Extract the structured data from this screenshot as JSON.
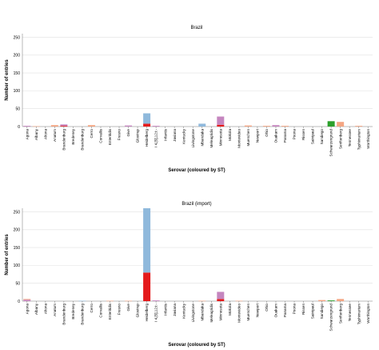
{
  "chart_data": [
    {
      "type": "bar",
      "stacked": true,
      "title": "Brazil",
      "xlabel": "Serovar (coloured by ST)",
      "ylabel": "Number of entries",
      "ylim": [
        0,
        260
      ],
      "yticks": [
        0,
        50,
        100,
        150,
        200,
        250
      ],
      "grid": true,
      "categories": [
        "Agona",
        "Albany",
        "Altona",
        "Anatum",
        "Brandenburg",
        "Bredeney",
        "Brandenburg",
        "Cerro",
        "Corvallis",
        "Enteritidis",
        "Fresno",
        "Give",
        "Glostrup",
        "Heidelberg",
        "I 4,[5],12:i:-",
        "Infantis",
        "Javiana",
        "Kentucky",
        "Livingstone",
        "Mbandaka",
        "Meleagridis",
        "Minnesota",
        "Mokola",
        "Montevideo",
        "Muenchen",
        "Newport",
        "Ohio",
        "Ouakam",
        "Panama",
        "Poona",
        "Rissen",
        "Saintpaul",
        "Sandiego",
        "Schwarzengrund",
        "Senftenberg",
        "Tennessee",
        "Typhimurium",
        "Worthington"
      ],
      "series": [
        {
          "color": "#e41a1c",
          "values": [
            0,
            0,
            0,
            0,
            2,
            0,
            0,
            0,
            0,
            0,
            0,
            0,
            0,
            8,
            0,
            0,
            0,
            0,
            0,
            0,
            0,
            5,
            0,
            0,
            0,
            0,
            0,
            0,
            0,
            0,
            0,
            0,
            0,
            0,
            0,
            0,
            0,
            0
          ]
        },
        {
          "color": "#8fb9dc",
          "values": [
            0,
            0,
            0,
            0,
            0,
            0,
            0,
            0,
            0,
            0,
            0,
            0,
            0,
            29,
            0,
            0,
            0,
            0,
            0,
            8,
            0,
            0,
            0,
            0,
            0,
            0,
            0,
            0,
            0,
            0,
            0,
            0,
            0,
            0,
            0,
            0,
            0,
            0
          ]
        },
        {
          "color": "#c586bf",
          "values": [
            2,
            0,
            0,
            0,
            4,
            0,
            0,
            0,
            0,
            0,
            0,
            3,
            0,
            0,
            2,
            0,
            0,
            0,
            0,
            0,
            0,
            23,
            0,
            0,
            0,
            0,
            0,
            4,
            0,
            0,
            0,
            0,
            0,
            0,
            0,
            0,
            0,
            0
          ]
        },
        {
          "color": "#f4a582",
          "values": [
            0,
            1,
            0,
            4,
            0,
            0,
            0,
            4,
            0,
            0,
            0,
            0,
            0,
            0,
            0,
            0,
            0,
            0,
            0,
            0,
            0,
            0,
            0,
            0,
            3,
            0,
            2,
            0,
            2,
            0,
            0,
            0,
            0,
            0,
            13,
            0,
            2,
            0
          ]
        },
        {
          "color": "#2ca02c",
          "values": [
            0,
            0,
            0,
            0,
            0,
            0,
            0,
            0,
            0,
            0,
            0,
            0,
            0,
            0,
            0,
            0,
            0,
            0,
            0,
            0,
            0,
            0,
            0,
            0,
            0,
            0,
            0,
            0,
            0,
            0,
            0,
            0,
            0,
            15,
            0,
            0,
            0,
            0
          ]
        },
        {
          "color": "#b4c69a",
          "values": [
            0,
            0,
            0,
            0,
            0,
            0,
            0,
            0,
            0,
            0,
            0,
            0,
            0,
            0,
            0,
            0,
            0,
            0,
            0,
            0,
            0,
            0,
            0,
            0,
            0,
            0,
            0,
            0,
            0,
            0,
            0,
            0,
            0,
            0,
            0,
            0,
            0,
            0
          ]
        }
      ]
    },
    {
      "type": "bar",
      "stacked": true,
      "title": "Brazil (import)",
      "xlabel": "Serovar (coloured by ST)",
      "ylabel": "Number of entries",
      "ylim": [
        0,
        260
      ],
      "yticks": [
        0,
        50,
        100,
        150,
        200,
        250
      ],
      "grid": true,
      "categories": [
        "Agona",
        "Albany",
        "Altona",
        "Anatum",
        "Brandenburg",
        "Bredeney",
        "Brandenburg",
        "Cerro",
        "Corvallis",
        "Enteritidis",
        "Fresno",
        "Give",
        "Glostrup",
        "Heidelberg",
        "I 4,[5],12:i:-",
        "Infantis",
        "Javiana",
        "Kentucky",
        "Livingstone",
        "Mbandaka",
        "Meleagridis",
        "Minnesota",
        "Mokola",
        "Montevideo",
        "Muenchen",
        "Newport",
        "Ohio",
        "Ouakam",
        "Panama",
        "Poona",
        "Rissen",
        "Saintpaul",
        "Sandiego",
        "Schwarzengrund",
        "Senftenberg",
        "Tennessee",
        "Typhimurium",
        "Worthington"
      ],
      "series": [
        {
          "color": "#e41a1c",
          "values": [
            0,
            0,
            0,
            0,
            0,
            0,
            0,
            0,
            0,
            0,
            0,
            0,
            0,
            80,
            0,
            0,
            0,
            0,
            0,
            0,
            0,
            6,
            0,
            0,
            0,
            0,
            0,
            0,
            0,
            0,
            0,
            0,
            0,
            0,
            0,
            0,
            0,
            0
          ]
        },
        {
          "color": "#8fb9dc",
          "values": [
            0,
            0,
            0,
            0,
            0,
            0,
            1,
            0,
            0,
            0,
            0,
            0,
            0,
            180,
            0,
            0,
            0,
            0,
            0,
            0,
            0,
            0,
            0,
            0,
            0,
            0,
            0,
            0,
            0,
            0,
            0,
            0,
            0,
            0,
            0,
            0,
            0,
            0
          ]
        },
        {
          "color": "#c586bf",
          "values": [
            4,
            0,
            0,
            0,
            0,
            0,
            0,
            0,
            0,
            0,
            0,
            0,
            0,
            0,
            2,
            0,
            0,
            0,
            0,
            0,
            0,
            20,
            0,
            0,
            0,
            0,
            0,
            0,
            0,
            0,
            0,
            0,
            0,
            0,
            0,
            0,
            0,
            0
          ]
        },
        {
          "color": "#f4a582",
          "values": [
            2,
            0,
            0,
            0,
            0,
            0,
            0,
            0,
            0,
            1,
            0,
            1,
            0,
            0,
            0,
            0,
            0,
            0,
            0,
            1,
            0,
            0,
            0,
            1,
            0,
            0,
            0,
            0,
            0,
            0,
            0,
            0,
            3,
            0,
            6,
            0,
            0,
            0
          ]
        },
        {
          "color": "#2ca02c",
          "values": [
            0,
            0,
            0,
            0,
            0,
            0,
            0,
            0,
            0,
            0,
            0,
            0,
            0,
            0,
            0,
            0,
            0,
            0,
            0,
            0,
            0,
            0,
            0,
            0,
            0,
            0,
            0,
            0,
            0,
            0,
            0,
            0,
            0,
            2,
            0,
            0,
            0,
            0
          ]
        },
        {
          "color": "#b4c69a",
          "values": [
            0,
            0,
            0,
            0,
            0,
            0,
            0,
            0,
            0,
            0,
            0,
            0,
            0,
            0,
            0,
            0,
            0,
            0,
            0,
            0,
            0,
            0,
            0,
            0,
            0,
            0,
            0,
            0,
            0,
            0,
            0,
            0,
            0,
            0,
            0,
            0,
            0,
            0
          ]
        }
      ]
    }
  ]
}
